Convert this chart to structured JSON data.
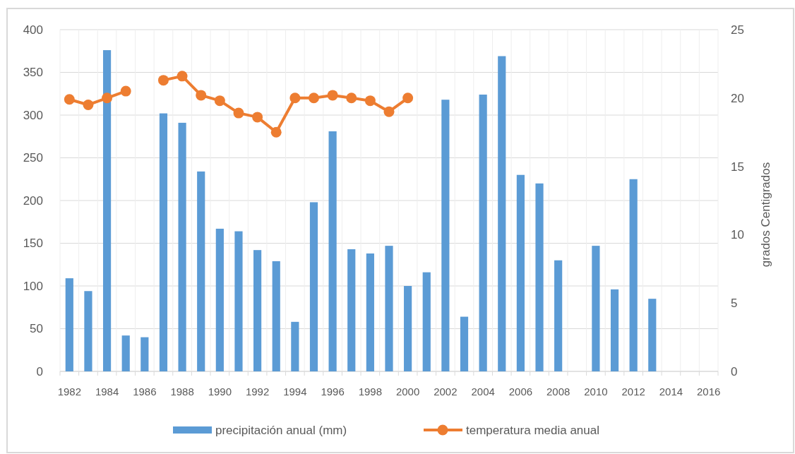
{
  "chart_data": {
    "type": "bar",
    "categories": [
      "1982",
      null,
      "1984",
      null,
      "1986",
      null,
      "1988",
      null,
      "1990",
      null,
      "1992",
      null,
      "1994",
      null,
      "1996",
      null,
      "1998",
      null,
      "2000",
      null,
      "2002",
      null,
      "2004",
      null,
      "2006",
      null,
      "2008",
      null,
      "2010",
      null,
      "2012",
      null,
      "2014",
      null,
      "2016"
    ],
    "series": [
      {
        "name": "precipitación anual (mm)",
        "color": "#5b9bd5",
        "values": [
          109,
          94,
          376,
          42,
          40,
          302,
          291,
          234,
          167,
          164,
          142,
          129,
          58,
          198,
          281,
          143,
          138,
          147,
          100,
          116,
          318,
          64,
          324,
          369,
          230,
          220,
          130,
          null,
          147,
          96,
          225,
          85,
          null,
          null,
          null
        ]
      },
      {
        "name": "temperatura media anual",
        "type": "line",
        "axis": "y2",
        "color": "#ed7d31",
        "marker": "circle",
        "values": [
          19.9,
          19.5,
          20.0,
          20.5,
          null,
          21.3,
          21.6,
          20.2,
          19.8,
          18.9,
          18.6,
          17.5,
          20.0,
          20.0,
          20.2,
          20.0,
          19.8,
          19.0,
          20.0,
          null,
          null,
          null,
          null,
          null,
          null,
          null,
          null,
          null,
          null,
          null,
          null,
          null,
          null,
          null,
          null
        ]
      }
    ],
    "y2label": "grados Centigrados",
    "ylim": [
      0,
      400
    ],
    "yticks": [
      0,
      50,
      100,
      150,
      200,
      250,
      300,
      350,
      400
    ],
    "y2lim": [
      0,
      25
    ],
    "y2ticks": [
      0,
      5,
      10,
      15,
      20,
      25
    ],
    "grid": true,
    "legend": "bottom"
  }
}
